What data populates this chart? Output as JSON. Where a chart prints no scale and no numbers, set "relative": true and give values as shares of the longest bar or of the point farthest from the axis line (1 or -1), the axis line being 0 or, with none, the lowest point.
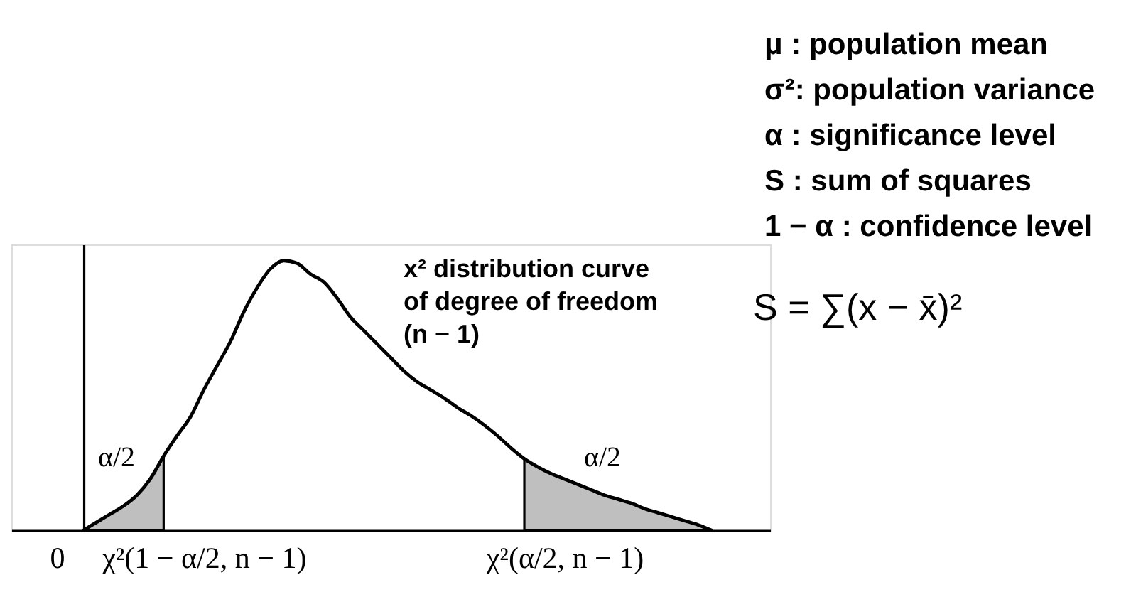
{
  "chart_data": {
    "type": "line",
    "relative": true,
    "tick_labels": "x",
    "categories": [
      null,
      null,
      null,
      "0",
      null,
      null,
      null,
      null,
      null,
      null,
      null,
      null,
      null,
      null,
      "χ²(1 − α/2, n − 1)",
      null,
      null,
      null,
      null,
      null,
      null,
      null,
      null,
      null,
      null,
      null,
      null,
      null,
      null,
      null,
      null,
      null,
      null,
      null,
      null,
      null,
      null,
      null,
      null,
      null,
      null,
      "χ²(α/2, n − 1)",
      null,
      null,
      null,
      null,
      null,
      null,
      null,
      null,
      null,
      null,
      null,
      null,
      null,
      null,
      null
    ],
    "series": [
      {
        "color": "#000000",
        "values": [
          null,
          null,
          null,
          null,
          null,
          0,
          0.03,
          0.06,
          0.09,
          0.13,
          0.19,
          0.275,
          0.35,
          0.42,
          0.52,
          0.61,
          0.7,
          0.81,
          0.9,
          0.97,
          1.0,
          0.99,
          0.95,
          0.92,
          0.86,
          0.79,
          0.74,
          0.69,
          0.64,
          0.59,
          0.55,
          0.52,
          0.49,
          0.455,
          0.425,
          0.39,
          0.35,
          0.305,
          0.265,
          0.235,
          0.21,
          0.19,
          0.17,
          0.15,
          0.13,
          0.115,
          0.1,
          0.08,
          0.065,
          0.05,
          0.035,
          0.02,
          0,
          null,
          null,
          null,
          null
        ]
      },
      {
        "type": "area",
        "color": "#000000",
        "values": [
          null,
          null,
          null,
          null,
          null,
          0,
          0.03,
          0.06,
          0.09,
          0.13,
          0.19,
          0.275,
          null,
          null,
          null,
          null,
          null,
          null,
          null,
          null,
          null,
          null,
          null,
          null,
          null,
          null,
          null,
          null,
          null,
          null,
          null,
          null,
          null,
          null,
          null,
          null,
          null,
          null,
          null,
          null,
          null,
          null,
          null,
          null,
          null,
          null,
          null,
          null,
          null,
          null,
          null,
          null,
          null,
          null,
          null,
          null,
          null
        ]
      },
      {
        "type": "area",
        "color": "#000000",
        "values": [
          null,
          null,
          null,
          null,
          null,
          null,
          null,
          null,
          null,
          null,
          null,
          null,
          null,
          null,
          null,
          null,
          null,
          null,
          null,
          null,
          null,
          null,
          null,
          null,
          null,
          null,
          null,
          null,
          null,
          null,
          null,
          null,
          null,
          null,
          null,
          null,
          null,
          null,
          0.265,
          0.235,
          0.21,
          0.19,
          0.17,
          0.15,
          0.13,
          0.115,
          0.1,
          0.08,
          0.065,
          0.05,
          0.035,
          0.02,
          0,
          null,
          null,
          null,
          null
        ]
      }
    ],
    "annotations": [
      "α/2",
      "α/2",
      "x² distribution curve\nof degree of freedom\n(n − 1)",
      "μ : population mean",
      "σ²: population variance",
      "α : significance level",
      "S : sum of squares",
      "1 − α : confidence level",
      "S = ∑(x − x̄)²"
    ]
  }
}
